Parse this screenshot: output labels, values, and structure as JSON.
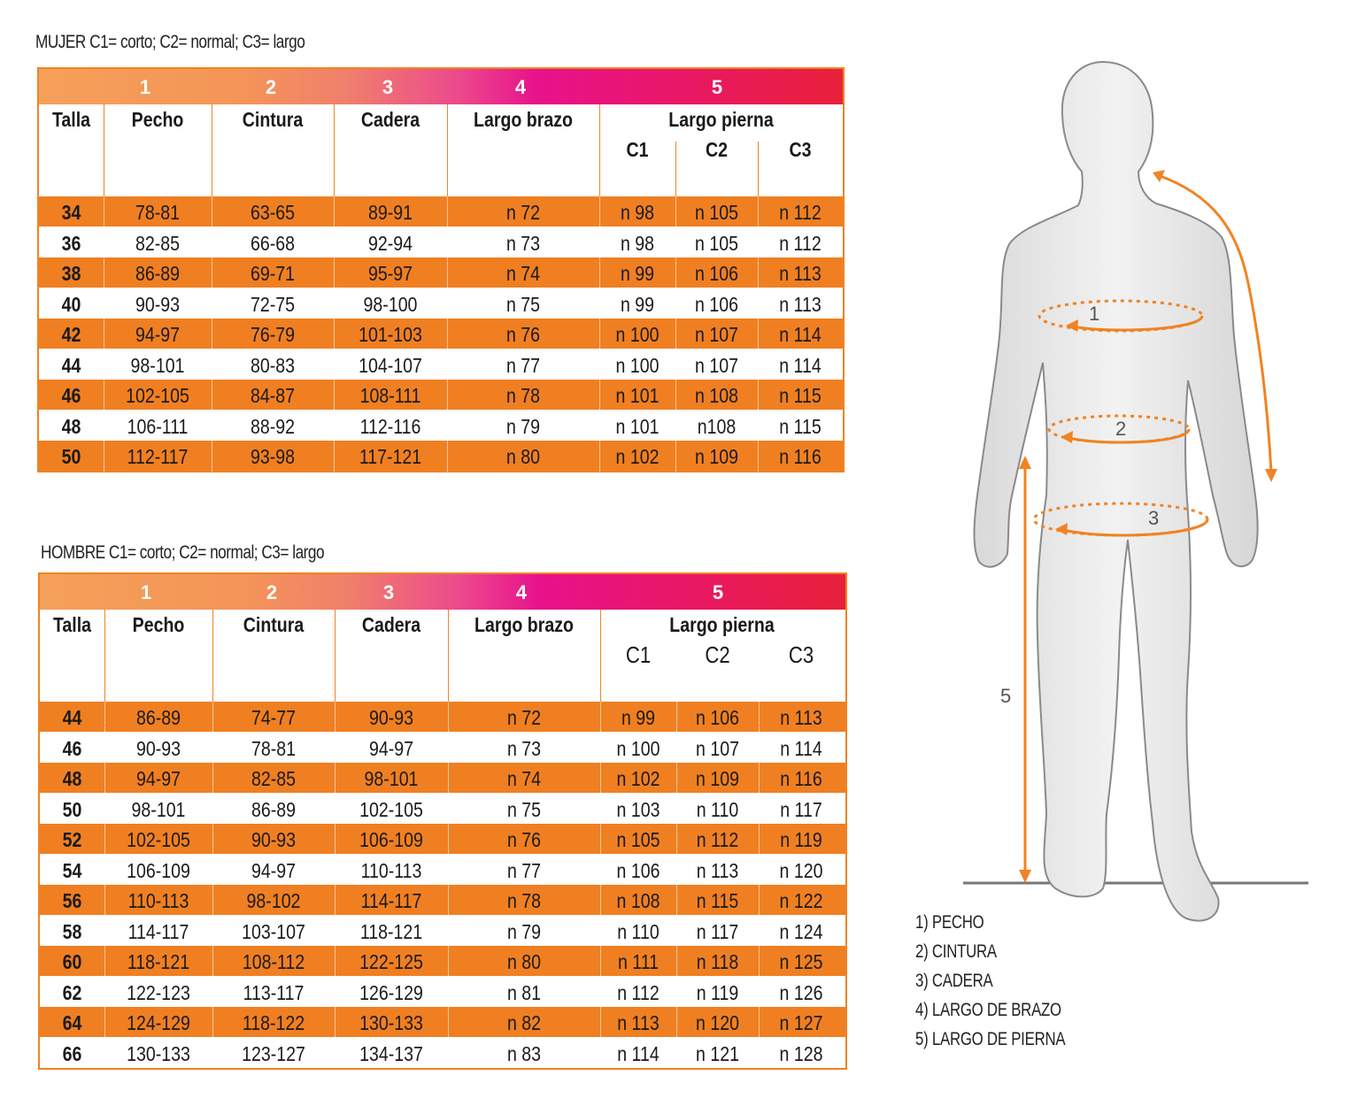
{
  "mujer": {
    "caption": "MUJER C1= corto; C2= normal; C3= largo",
    "group_numbers": [
      "1",
      "2",
      "3",
      "4",
      "5"
    ],
    "headers": {
      "talla": "Talla",
      "pecho": "Pecho",
      "cintura": "Cintura",
      "cadera": "Cadera",
      "largo_brazo": "Largo brazo",
      "largo_pierna": "Largo pierna",
      "c1": "C1",
      "c2": "C2",
      "c3": "C3"
    },
    "rows": [
      [
        "34",
        "78-81",
        "63-65",
        "89-91",
        "n 72",
        "n 98",
        "n 105",
        "n 112"
      ],
      [
        "36",
        "82-85",
        "66-68",
        "92-94",
        "n 73",
        "n 98",
        "n 105",
        "n 112"
      ],
      [
        "38",
        "86-89",
        "69-71",
        "95-97",
        "n 74",
        "n 99",
        "n 106",
        "n 113"
      ],
      [
        "40",
        "90-93",
        "72-75",
        "98-100",
        "n 75",
        "n 99",
        "n 106",
        "n 113"
      ],
      [
        "42",
        "94-97",
        "76-79",
        "101-103",
        "n 76",
        "n 100",
        "n 107",
        "n 114"
      ],
      [
        "44",
        "98-101",
        "80-83",
        "104-107",
        "n 77",
        "n 100",
        "n 107",
        "n 114"
      ],
      [
        "46",
        "102-105",
        "84-87",
        "108-111",
        "n 78",
        "n 101",
        "n 108",
        "n 115"
      ],
      [
        "48",
        "106-111",
        "88-92",
        "112-116",
        "n 79",
        "n 101",
        "n108",
        "n 115"
      ],
      [
        "50",
        "112-117",
        "93-98",
        "117-121",
        "n 80",
        "n 102",
        "n 109",
        "n 116"
      ]
    ]
  },
  "hombre": {
    "caption": "HOMBRE C1= corto; C2= normal; C3= largo",
    "group_numbers": [
      "1",
      "2",
      "3",
      "4",
      "5"
    ],
    "headers": {
      "talla": "Talla",
      "pecho": "Pecho",
      "cintura": "Cintura",
      "cadera": "Cadera",
      "largo_brazo": "Largo brazo",
      "largo_pierna": "Largo pierna",
      "c1": "C1",
      "c2": "C2",
      "c3": "C3"
    },
    "rows": [
      [
        "44",
        "86-89",
        "74-77",
        "90-93",
        "n 72",
        "n 99",
        "n 106",
        "n 113"
      ],
      [
        "46",
        "90-93",
        "78-81",
        "94-97",
        "n 73",
        "n 100",
        "n 107",
        "n 114"
      ],
      [
        "48",
        "94-97",
        "82-85",
        "98-101",
        "n 74",
        "n 102",
        "n 109",
        "n 116"
      ],
      [
        "50",
        "98-101",
        "86-89",
        "102-105",
        "n 75",
        "n 103",
        "n 110",
        "n 117"
      ],
      [
        "52",
        "102-105",
        "90-93",
        "106-109",
        "n 76",
        "n 105",
        "n 112",
        "n 119"
      ],
      [
        "54",
        "106-109",
        "94-97",
        "110-113",
        "n 77",
        "n 106",
        "n 113",
        "n 120"
      ],
      [
        "56",
        "110-113",
        "98-102",
        "114-117",
        "n 78",
        "n 108",
        "n 115",
        "n 122"
      ],
      [
        "58",
        "114-117",
        "103-107",
        "118-121",
        "n 79",
        "n 110",
        "n 117",
        "n 124"
      ],
      [
        "60",
        "118-121",
        "108-112",
        "122-125",
        "n 80",
        "n 111",
        "n 118",
        "n 125"
      ],
      [
        "62",
        "122-123",
        "113-117",
        "126-129",
        "n 81",
        "n 112",
        "n 119",
        "n 126"
      ],
      [
        "64",
        "124-129",
        "118-122",
        "130-133",
        "n 82",
        "n 113",
        "n 120",
        "n 127"
      ],
      [
        "66",
        "130-133",
        "123-127",
        "134-137",
        "n 83",
        "n 114",
        "n 121",
        "n 128"
      ]
    ]
  },
  "figure": {
    "markers": [
      "1",
      "2",
      "3",
      "5"
    ],
    "outline_color": "#8a8a8a",
    "body_color": "#e6e6e6",
    "arrow_color": "#f08323"
  },
  "legend": [
    "1) PECHO",
    "2) CINTURA",
    "3) CADERA",
    "4) LARGO DE BRAZO",
    "5) LARGO DE PIERNA"
  ],
  "colors": {
    "orange": "#f07f21",
    "border": "#f08323"
  }
}
